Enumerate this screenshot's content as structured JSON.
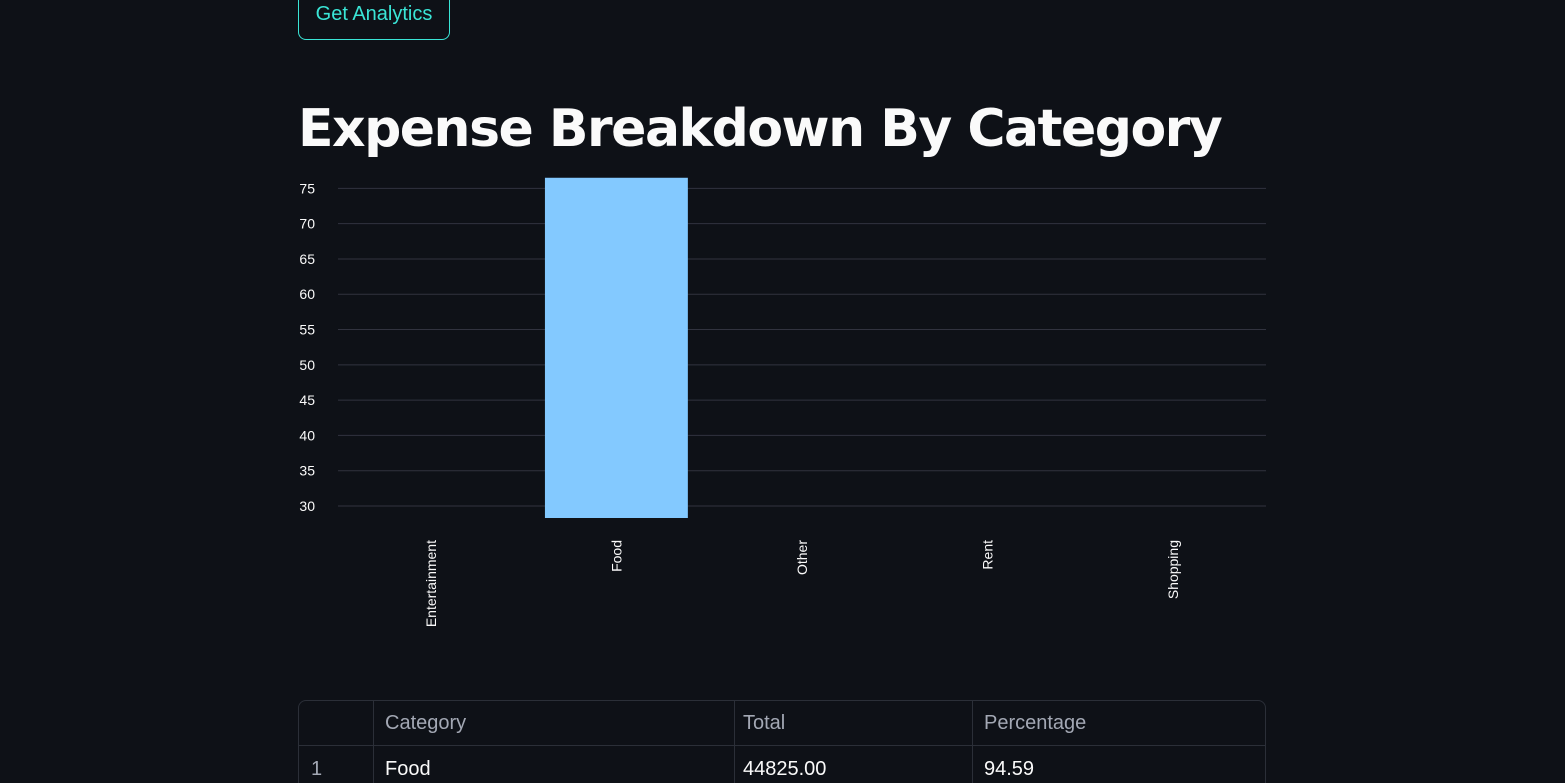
{
  "button": {
    "label": "Get Analytics"
  },
  "page_title": "Expense Breakdown By Category",
  "chart_data": {
    "type": "bar",
    "categories": [
      "Entertainment",
      "Food",
      "Other",
      "Rent",
      "Shopping"
    ],
    "values": [
      null,
      76.5,
      null,
      null,
      null
    ],
    "title": "",
    "xlabel": "",
    "ylabel": "",
    "ylim": [
      28.3,
      77.6
    ],
    "yticks": [
      30,
      35,
      40,
      45,
      50,
      55,
      60,
      65,
      70,
      75
    ],
    "grid": true,
    "bar_color": "#83c9ff",
    "grid_color": "#31333f"
  },
  "table": {
    "columns": [
      "",
      "Category",
      "Total",
      "Percentage"
    ],
    "rows": [
      [
        "1",
        "Food",
        "44825.00",
        "94.59"
      ]
    ]
  },
  "colors": {
    "background": "#0e1117",
    "accent": "#3ae5d6"
  }
}
